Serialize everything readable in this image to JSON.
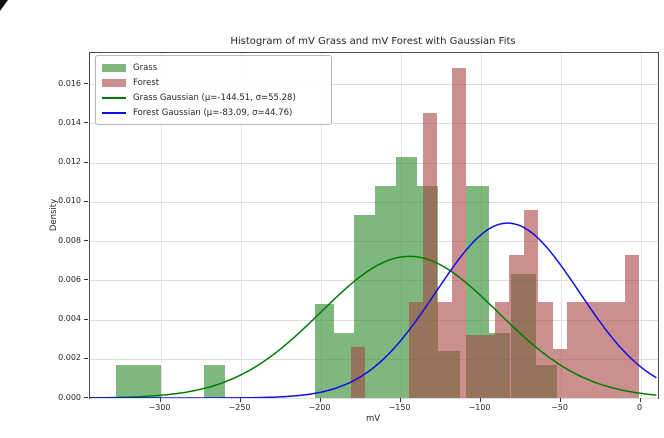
{
  "chart_data": {
    "type": "histogram",
    "title": "Histogram of mV Grass and mV Forest with Gaussian Fits",
    "xlabel": "mV",
    "ylabel": "Density",
    "xlim": [
      -344.1,
      10.9
    ],
    "ylim": [
      0,
      0.01758
    ],
    "grid": true,
    "xticks": [
      {
        "v": -300,
        "label": "−300"
      },
      {
        "v": -250,
        "label": "−250"
      },
      {
        "v": -200,
        "label": "−200"
      },
      {
        "v": -150,
        "label": "−150"
      },
      {
        "v": -100,
        "label": "−100"
      },
      {
        "v": -50,
        "label": "−50"
      },
      {
        "v": 0,
        "label": "0"
      }
    ],
    "yticks": [
      {
        "v": 0.0,
        "label": "0.000"
      },
      {
        "v": 0.002,
        "label": "0.002"
      },
      {
        "v": 0.004,
        "label": "0.004"
      },
      {
        "v": 0.006,
        "label": "0.006"
      },
      {
        "v": 0.008,
        "label": "0.008"
      },
      {
        "v": 0.01,
        "label": "0.010"
      },
      {
        "v": 0.012,
        "label": "0.012"
      },
      {
        "v": 0.014,
        "label": "0.014"
      },
      {
        "v": 0.016,
        "label": "0.016"
      }
    ],
    "series": [
      {
        "name": "Grass",
        "kind": "hist",
        "color": "rgba(40,137,40,0.6)",
        "bars": [
          {
            "x0": -328.0,
            "x1": -300.0,
            "density": 0.0017
          },
          {
            "x0": -273.0,
            "x1": -259.5,
            "density": 0.0017
          },
          {
            "x0": -203.5,
            "x1": -191.5,
            "density": 0.0048
          },
          {
            "x0": -191.5,
            "x1": -179.0,
            "density": 0.0033
          },
          {
            "x0": -179.0,
            "x1": -166.0,
            "density": 0.0093
          },
          {
            "x0": -166.0,
            "x1": -153.0,
            "density": 0.0108
          },
          {
            "x0": -153.0,
            "x1": -139.5,
            "density": 0.0123
          },
          {
            "x0": -139.5,
            "x1": -126.5,
            "density": 0.0108
          },
          {
            "x0": -126.5,
            "x1": -113.0,
            "density": 0.0024
          },
          {
            "x0": -109.0,
            "x1": -95.0,
            "density": 0.0108
          },
          {
            "x0": -95.0,
            "x1": -81.5,
            "density": 0.0033
          },
          {
            "x0": -81.0,
            "x1": -65.5,
            "density": 0.0063
          },
          {
            "x0": -65.5,
            "x1": -52.0,
            "density": 0.0017
          }
        ]
      },
      {
        "name": "Forest",
        "kind": "hist",
        "color": "rgba(170,68,68,0.6)",
        "bars": [
          {
            "x0": -181,
            "x1": -172,
            "density": 0.0026
          },
          {
            "x0": -145,
            "x1": -136,
            "density": 0.0049
          },
          {
            "x0": -136,
            "x1": -127,
            "density": 0.0145
          },
          {
            "x0": -127,
            "x1": -118,
            "density": 0.0049
          },
          {
            "x0": -118,
            "x1": -109,
            "density": 0.0168
          },
          {
            "x0": -109,
            "x1": -100,
            "density": 0.0032
          },
          {
            "x0": -100,
            "x1": -91,
            "density": 0.0032
          },
          {
            "x0": -91,
            "x1": -82,
            "density": 0.0049
          },
          {
            "x0": -82,
            "x1": -73,
            "density": 0.0073
          },
          {
            "x0": -73,
            "x1": -64,
            "density": 0.0096
          },
          {
            "x0": -64,
            "x1": -55,
            "density": 0.0049
          },
          {
            "x0": -55,
            "x1": -46,
            "density": 0.0025
          },
          {
            "x0": -46,
            "x1": -37,
            "density": 0.0049
          },
          {
            "x0": -37,
            "x1": -28,
            "density": 0.0049
          },
          {
            "x0": -28,
            "x1": -19,
            "density": 0.0049
          },
          {
            "x0": -19,
            "x1": -10,
            "density": 0.0049
          },
          {
            "x0": -10,
            "x1": -1,
            "density": 0.0073
          }
        ]
      },
      {
        "name": "Grass Gaussian (μ=-144.51, σ=55.28)",
        "kind": "gaussian",
        "mu": -144.51,
        "sigma": 55.28,
        "color": "#007d00"
      },
      {
        "name": "Forest Gaussian (μ=-83.09, σ=44.76)",
        "kind": "gaussian",
        "mu": -83.09,
        "sigma": 44.76,
        "color": "#0e0ee8"
      }
    ],
    "legend": {
      "position": "upper left",
      "items": [
        {
          "swatch": "patch",
          "color": "rgba(40,137,40,0.6)",
          "label": "Grass"
        },
        {
          "swatch": "patch",
          "color": "rgba(170,68,68,0.6)",
          "label": "Forest"
        },
        {
          "swatch": "line",
          "color": "#007d00",
          "label": "Grass Gaussian (μ=-144.51, σ=55.28)"
        },
        {
          "swatch": "line",
          "color": "#0e0ee8",
          "label": "Forest Gaussian (μ=-83.09, σ=44.76)"
        }
      ]
    }
  }
}
